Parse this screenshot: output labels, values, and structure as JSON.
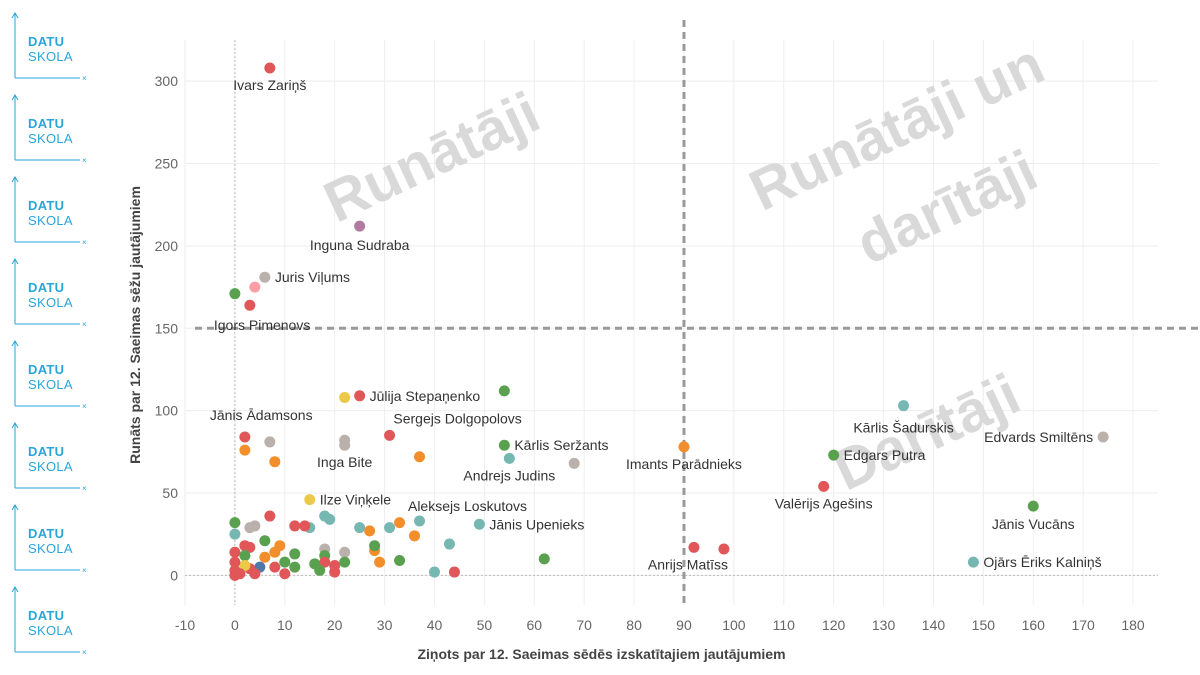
{
  "sidebar": {
    "logos": [
      {
        "line1": "DATU",
        "line2": "SKOLA"
      },
      {
        "line1": "DATU",
        "line2": "SKOLA"
      },
      {
        "line1": "DATU",
        "line2": "SKOLA"
      },
      {
        "line1": "DATU",
        "line2": "SKOLA"
      },
      {
        "line1": "DATU",
        "line2": "SKOLA"
      },
      {
        "line1": "DATU",
        "line2": "SKOLA"
      },
      {
        "line1": "DATU",
        "line2": "SKOLA"
      },
      {
        "line1": "DATU",
        "line2": "SKOLA"
      }
    ],
    "accent": "#2aa5d8"
  },
  "chart_data": {
    "type": "scatter",
    "title": "",
    "xlabel": "Ziņots par 12. Saeimas sēdēs izskatītajiem jautājumiem",
    "ylabel": "Runāts par 12. Saeimas sēžu jautājumiem",
    "xlim": [
      -10,
      185
    ],
    "ylim": [
      -18,
      325
    ],
    "x_ticks": [
      -10,
      0,
      10,
      20,
      30,
      40,
      50,
      60,
      70,
      80,
      90,
      100,
      110,
      120,
      130,
      140,
      150,
      160,
      170,
      180
    ],
    "y_ticks": [
      0,
      50,
      100,
      150,
      200,
      250,
      300
    ],
    "grid": true,
    "reference_lines": {
      "x": 90,
      "y": 150
    },
    "quadrant_labels": [
      {
        "text": "Runātāji",
        "quadrant": "top-left"
      },
      {
        "text": "Runātāji un",
        "quadrant": "top-right-line1"
      },
      {
        "text": "darītāji",
        "quadrant": "top-right-line2"
      },
      {
        "text": "Darītāji",
        "quadrant": "bottom-right"
      }
    ],
    "points": [
      {
        "x": 7,
        "y": 308,
        "color": "#e15759",
        "label": "Ivars Zariņš"
      },
      {
        "x": 25,
        "y": 212,
        "color": "#b07aa1",
        "label": "Inguna Sudraba"
      },
      {
        "x": 6,
        "y": 181,
        "color": "#bab0ac",
        "label": "Juris Viļums"
      },
      {
        "x": 4,
        "y": 175,
        "color": "#ff9da7",
        "label": ""
      },
      {
        "x": 0,
        "y": 171,
        "color": "#59a14f",
        "label": ""
      },
      {
        "x": 3,
        "y": 164,
        "color": "#e15759",
        "label": "Igors Pimenovs"
      },
      {
        "x": 25,
        "y": 109,
        "color": "#e15759",
        "label": "Jūlija Stepaņenko"
      },
      {
        "x": 22,
        "y": 108,
        "color": "#edc948",
        "label": ""
      },
      {
        "x": 54,
        "y": 112,
        "color": "#59a14f",
        "label": ""
      },
      {
        "x": 31,
        "y": 85,
        "color": "#e15759",
        "label": "Sergejs Dolgopolovs"
      },
      {
        "x": 2,
        "y": 84,
        "color": "#e15759",
        "label": "Jānis Ādamsons"
      },
      {
        "x": 7,
        "y": 81,
        "color": "#bab0ac",
        "label": ""
      },
      {
        "x": 2,
        "y": 76,
        "color": "#f28e2b",
        "label": ""
      },
      {
        "x": 8,
        "y": 69,
        "color": "#f28e2b",
        "label": ""
      },
      {
        "x": 22,
        "y": 82,
        "color": "#bab0ac",
        "label": ""
      },
      {
        "x": 22,
        "y": 79,
        "color": "#bab0ac",
        "label": "Inga Bite"
      },
      {
        "x": 37,
        "y": 72,
        "color": "#f28e2b",
        "label": ""
      },
      {
        "x": 54,
        "y": 79,
        "color": "#59a14f",
        "label": "Kārlis Seržants"
      },
      {
        "x": 55,
        "y": 71,
        "color": "#76b7b2",
        "label": "Andrejs Judins"
      },
      {
        "x": 68,
        "y": 68,
        "color": "#bab0ac",
        "label": ""
      },
      {
        "x": 90,
        "y": 78,
        "color": "#f28e2b",
        "label": "Imants Parādnieks"
      },
      {
        "x": 134,
        "y": 103,
        "color": "#76b7b2",
        "label": "Kārlis Šadurskis"
      },
      {
        "x": 174,
        "y": 84,
        "color": "#bab0ac",
        "label": "Edvards Smiltēns"
      },
      {
        "x": 120,
        "y": 73,
        "color": "#59a14f",
        "label": "Edgars Putra"
      },
      {
        "x": 118,
        "y": 54,
        "color": "#e15759",
        "label": "Valērijs Agešins"
      },
      {
        "x": 160,
        "y": 42,
        "color": "#59a14f",
        "label": "Jānis Vucāns"
      },
      {
        "x": 148,
        "y": 8,
        "color": "#76b7b2",
        "label": "Ojārs Ēriks Kalniņš"
      },
      {
        "x": 15,
        "y": 46,
        "color": "#edc948",
        "label": "Ilze Viņķele"
      },
      {
        "x": 37,
        "y": 33,
        "color": "#76b7b2",
        "label": "Aleksejs Loskutovs"
      },
      {
        "x": 49,
        "y": 31,
        "color": "#76b7b2",
        "label": "Jānis Upenieks"
      },
      {
        "x": 92,
        "y": 17,
        "color": "#e15759",
        "label": "Anrijs Matīss"
      },
      {
        "x": 98,
        "y": 16,
        "color": "#e15759",
        "label": ""
      },
      {
        "x": 62,
        "y": 10,
        "color": "#59a14f",
        "label": ""
      },
      {
        "x": 43,
        "y": 19,
        "color": "#76b7b2",
        "label": ""
      },
      {
        "x": 44,
        "y": 2,
        "color": "#e15759",
        "label": ""
      },
      {
        "x": 40,
        "y": 2,
        "color": "#76b7b2",
        "label": ""
      },
      {
        "x": 33,
        "y": 9,
        "color": "#59a14f",
        "label": ""
      },
      {
        "x": 33,
        "y": 32,
        "color": "#f28e2b",
        "label": ""
      },
      {
        "x": 36,
        "y": 24,
        "color": "#f28e2b",
        "label": ""
      },
      {
        "x": 31,
        "y": 29,
        "color": "#76b7b2",
        "label": ""
      },
      {
        "x": 29,
        "y": 8,
        "color": "#f28e2b",
        "label": ""
      },
      {
        "x": 28,
        "y": 15,
        "color": "#f28e2b",
        "label": ""
      },
      {
        "x": 28,
        "y": 18,
        "color": "#59a14f",
        "label": ""
      },
      {
        "x": 27,
        "y": 27,
        "color": "#f28e2b",
        "label": ""
      },
      {
        "x": 25,
        "y": 29,
        "color": "#76b7b2",
        "label": ""
      },
      {
        "x": 22,
        "y": 14,
        "color": "#bab0ac",
        "label": ""
      },
      {
        "x": 22,
        "y": 8,
        "color": "#59a14f",
        "label": ""
      },
      {
        "x": 20,
        "y": 6,
        "color": "#e15759",
        "label": ""
      },
      {
        "x": 20,
        "y": 2,
        "color": "#e15759",
        "label": ""
      },
      {
        "x": 19,
        "y": 34,
        "color": "#76b7b2",
        "label": ""
      },
      {
        "x": 18,
        "y": 36,
        "color": "#76b7b2",
        "label": ""
      },
      {
        "x": 18,
        "y": 16,
        "color": "#bab0ac",
        "label": ""
      },
      {
        "x": 18,
        "y": 12,
        "color": "#59a14f",
        "label": ""
      },
      {
        "x": 18,
        "y": 8,
        "color": "#e15759",
        "label": ""
      },
      {
        "x": 17,
        "y": 3,
        "color": "#59a14f",
        "label": ""
      },
      {
        "x": 16,
        "y": 7,
        "color": "#59a14f",
        "label": ""
      },
      {
        "x": 15,
        "y": 29,
        "color": "#76b7b2",
        "label": ""
      },
      {
        "x": 14,
        "y": 30,
        "color": "#e15759",
        "label": ""
      },
      {
        "x": 12,
        "y": 30,
        "color": "#e15759",
        "label": ""
      },
      {
        "x": 12,
        "y": 13,
        "color": "#59a14f",
        "label": ""
      },
      {
        "x": 12,
        "y": 5,
        "color": "#59a14f",
        "label": ""
      },
      {
        "x": 10,
        "y": 1,
        "color": "#e15759",
        "label": ""
      },
      {
        "x": 10,
        "y": 8,
        "color": "#59a14f",
        "label": ""
      },
      {
        "x": 9,
        "y": 18,
        "color": "#f28e2b",
        "label": ""
      },
      {
        "x": 8,
        "y": 14,
        "color": "#f28e2b",
        "label": ""
      },
      {
        "x": 8,
        "y": 5,
        "color": "#e15759",
        "label": ""
      },
      {
        "x": 7,
        "y": 36,
        "color": "#e15759",
        "label": ""
      },
      {
        "x": 6,
        "y": 21,
        "color": "#59a14f",
        "label": ""
      },
      {
        "x": 6,
        "y": 11,
        "color": "#f28e2b",
        "label": ""
      },
      {
        "x": 5,
        "y": 5,
        "color": "#4e79a7",
        "label": ""
      },
      {
        "x": 4,
        "y": 30,
        "color": "#bab0ac",
        "label": ""
      },
      {
        "x": 3,
        "y": 29,
        "color": "#bab0ac",
        "label": ""
      },
      {
        "x": 3,
        "y": 17,
        "color": "#e15759",
        "label": ""
      },
      {
        "x": 4,
        "y": 1,
        "color": "#e15759",
        "label": ""
      },
      {
        "x": 3,
        "y": 4,
        "color": "#e15759",
        "label": ""
      },
      {
        "x": 2,
        "y": 18,
        "color": "#e15759",
        "label": ""
      },
      {
        "x": 2,
        "y": 12,
        "color": "#59a14f",
        "label": ""
      },
      {
        "x": 2,
        "y": 6,
        "color": "#edc948",
        "label": ""
      },
      {
        "x": 1,
        "y": 1,
        "color": "#e15759",
        "label": ""
      },
      {
        "x": 0,
        "y": 32,
        "color": "#59a14f",
        "label": ""
      },
      {
        "x": 0,
        "y": 25,
        "color": "#76b7b2",
        "label": ""
      },
      {
        "x": 0,
        "y": 14,
        "color": "#e15759",
        "label": ""
      },
      {
        "x": 0,
        "y": 8,
        "color": "#e15759",
        "label": ""
      },
      {
        "x": 0,
        "y": 3,
        "color": "#e15759",
        "label": ""
      },
      {
        "x": 0,
        "y": 0,
        "color": "#e15759",
        "label": ""
      }
    ]
  }
}
